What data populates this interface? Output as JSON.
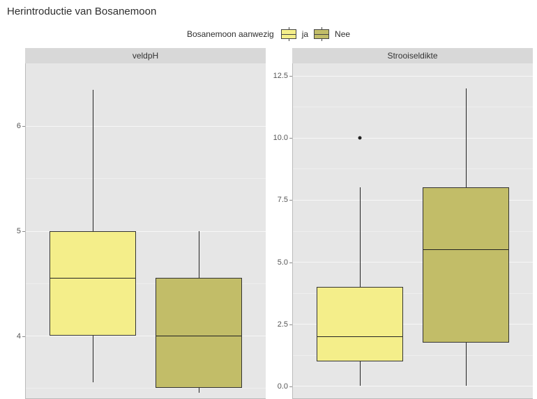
{
  "title": "Herintroductie van Bosanemoon",
  "legend": {
    "label": "Bosanemoon aanwezig",
    "items": [
      {
        "key": "ja",
        "label": "ja",
        "color": "#f4ee8a"
      },
      {
        "key": "Nee",
        "label": "Nee",
        "color": "#c2bd68"
      }
    ]
  },
  "style": {
    "panel_bg": "#e6e6e6",
    "strip_bg": "#d8d8d8",
    "grid_major_color": "#f7f7f7",
    "grid_major_width": 1.6,
    "grid_minor_color": "#efefef",
    "grid_minor_width": 0.8,
    "axis_text_color": "#555555",
    "title_fontsize": 15,
    "strip_fontsize": 12,
    "axis_fontsize": 11,
    "legend_fontsize": 12,
    "box_border_color": "#333333",
    "whisker_color": "#222222",
    "outlier_color": "#222222"
  },
  "panels": [
    {
      "facet_label": "veldpH",
      "ylim": [
        3.4,
        6.6
      ],
      "yticks_major": [
        4,
        5,
        6
      ],
      "yticks_minor": [
        3.5,
        4.5,
        5.5
      ],
      "boxes": [
        {
          "series": "ja",
          "color": "#f4ee8a",
          "x_center": 0.28,
          "width": 0.36,
          "q1": 4.0,
          "median": 4.55,
          "q3": 5.0,
          "whisker_low": 3.55,
          "whisker_high": 6.35,
          "outliers": []
        },
        {
          "series": "Nee",
          "color": "#c2bd68",
          "x_center": 0.72,
          "width": 0.36,
          "q1": 3.5,
          "median": 4.0,
          "q3": 4.55,
          "whisker_low": 3.45,
          "whisker_high": 5.0,
          "outliers": []
        }
      ]
    },
    {
      "facet_label": "Strooiseldikte",
      "ylim": [
        -0.5,
        13.0
      ],
      "yticks_major": [
        0,
        2.5,
        5,
        7.5,
        10,
        12.5
      ],
      "yticks_minor": [
        1.25,
        3.75,
        6.25,
        8.75,
        11.25
      ],
      "boxes": [
        {
          "series": "ja",
          "color": "#f4ee8a",
          "x_center": 0.28,
          "width": 0.36,
          "q1": 1.0,
          "median": 2.0,
          "q3": 4.0,
          "whisker_low": 0.0,
          "whisker_high": 8.0,
          "outliers": [
            10.0
          ]
        },
        {
          "series": "Nee",
          "color": "#c2bd68",
          "x_center": 0.72,
          "width": 0.36,
          "q1": 1.75,
          "median": 5.5,
          "q3": 8.0,
          "whisker_low": 0.0,
          "whisker_high": 12.0,
          "outliers": []
        }
      ]
    }
  ]
}
